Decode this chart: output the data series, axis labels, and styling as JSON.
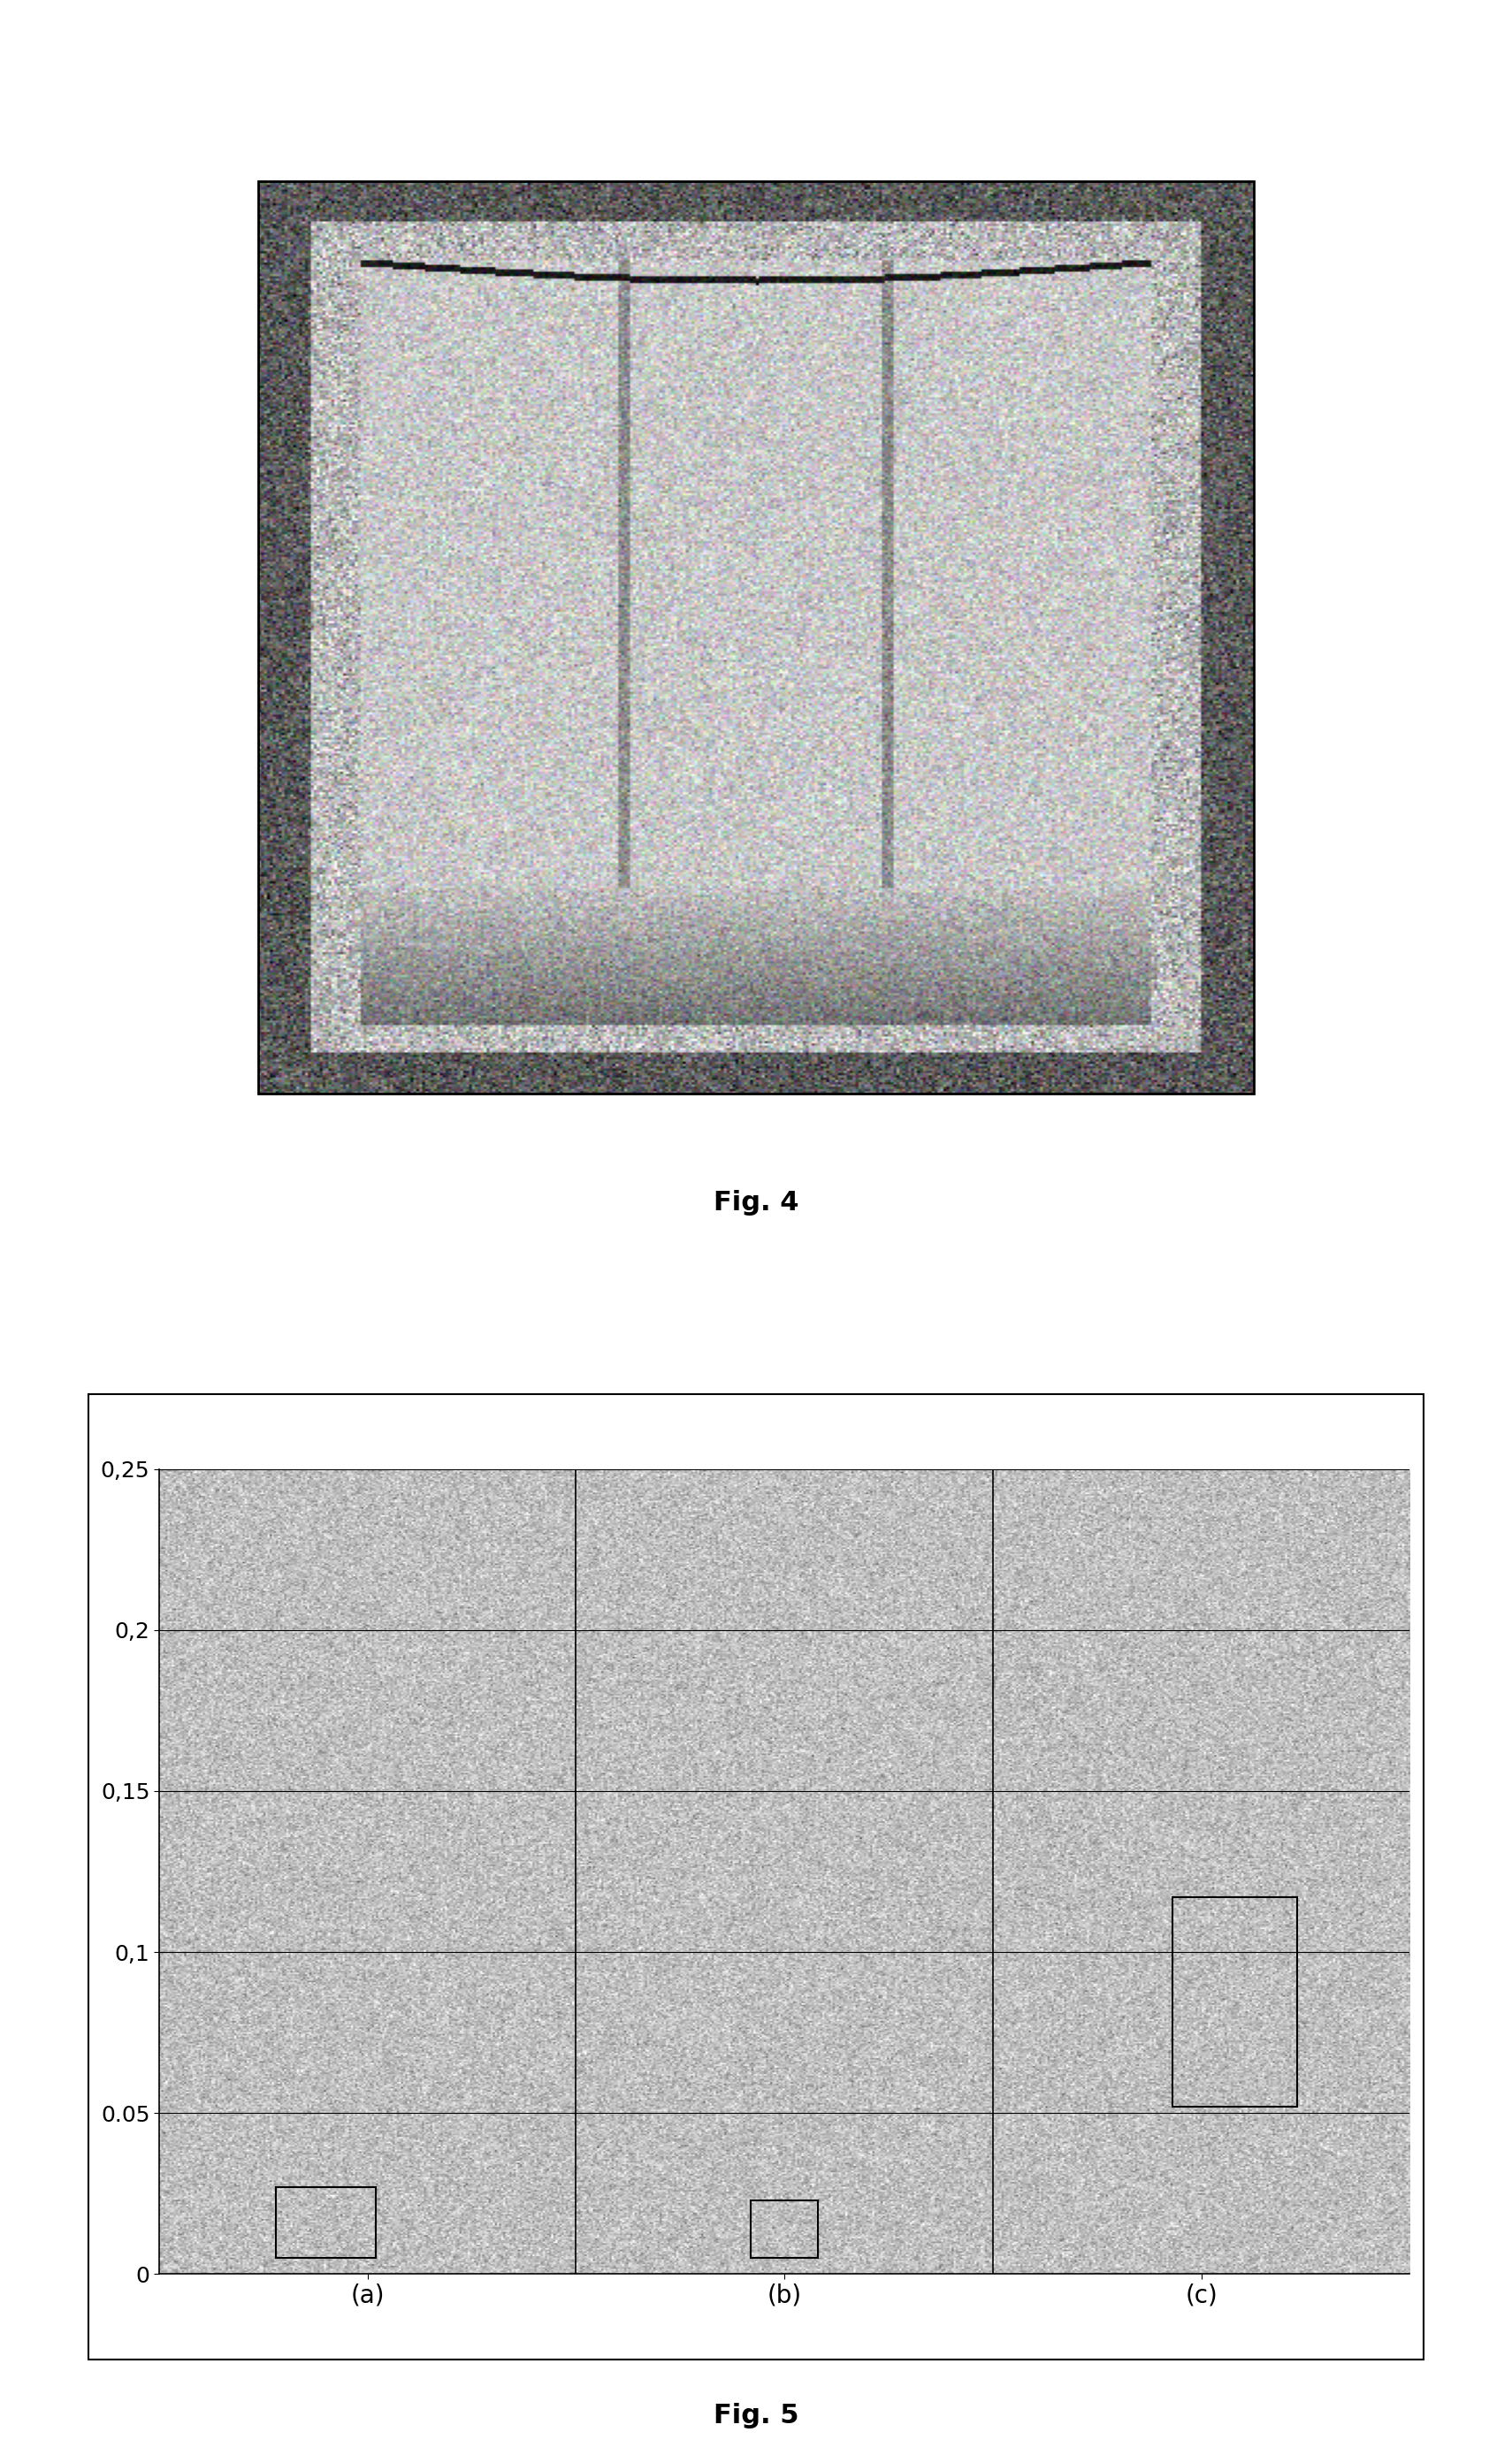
{
  "fig4_caption": "Fig. 4",
  "fig5_caption": "Fig. 5",
  "chart_yticks": [
    0,
    0.05,
    0.1,
    0.15,
    0.2,
    0.25
  ],
  "chart_ytick_labels": [
    "0",
    "0.05",
    "0,1",
    "0,15",
    "0,2",
    "0,25"
  ],
  "chart_xlabels": [
    "(a)",
    "(b)",
    "(c)"
  ],
  "chart_ylim": [
    0,
    0.25
  ],
  "chart_xlim": [
    0,
    3
  ],
  "background_color": "#ffffff",
  "chart_bg_color": "#c8c8c8",
  "grid_color": "#000000",
  "box_color": "#000000",
  "caption_fontsize": 22,
  "tick_fontsize": 18,
  "xlabel_fontsize": 20,
  "fig4_noise_seed": 42,
  "fig5_noise_seed": 99
}
